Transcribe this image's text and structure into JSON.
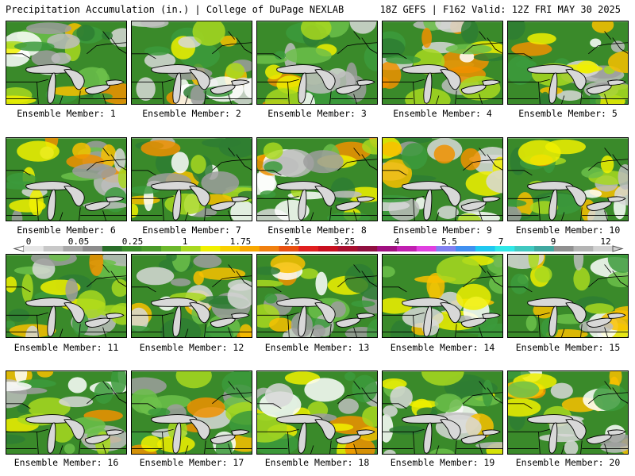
{
  "header": {
    "left": "Precipitation Accumulation (in.) | College of DuPage NEXLAB",
    "right": "18Z GEFS | F162 Valid: 12Z FRI MAY 30 2025"
  },
  "panels": [
    {
      "label": "Ensemble Member: 1"
    },
    {
      "label": "Ensemble Member: 2"
    },
    {
      "label": "Ensemble Member: 3"
    },
    {
      "label": "Ensemble Member: 4"
    },
    {
      "label": "Ensemble Member: 5"
    },
    {
      "label": "Ensemble Member: 6"
    },
    {
      "label": "Ensemble Member: 7"
    },
    {
      "label": "Ensemble Member: 8"
    },
    {
      "label": "Ensemble Member: 9"
    },
    {
      "label": "Ensemble Member: 10"
    },
    {
      "label": "Ensemble Member: 11"
    },
    {
      "label": "Ensemble Member: 12"
    },
    {
      "label": "Ensemble Member: 13"
    },
    {
      "label": "Ensemble Member: 14"
    },
    {
      "label": "Ensemble Member: 15"
    },
    {
      "label": "Ensemble Member: 16"
    },
    {
      "label": "Ensemble Member: 17"
    },
    {
      "label": "Ensemble Member: 18"
    },
    {
      "label": "Ensemble Member: 19"
    },
    {
      "label": "Ensemble Member: 20"
    }
  ],
  "colorbar": {
    "labels": [
      "0",
      "0.05",
      "0.25",
      "1",
      "1.75",
      "2.5",
      "3.25",
      "4",
      "5.5",
      "7",
      "9",
      "12"
    ],
    "colors": [
      "#e6e6e6",
      "#c8c8c8",
      "#a8a8a8",
      "#8c8c8c",
      "#2a6e2a",
      "#3a8a2a",
      "#4a9a2a",
      "#6cb82c",
      "#a8d820",
      "#f0f000",
      "#f8d000",
      "#f8a800",
      "#f08010",
      "#e85010",
      "#e02020",
      "#c81020",
      "#a81030",
      "#901040",
      "#a01080",
      "#c020b0",
      "#e040e0",
      "#8080f0",
      "#4090f0",
      "#20c8f0",
      "#30e8e8",
      "#40c8c0",
      "#40a8a0",
      "#909090",
      "#b4b4b4",
      "#d2d2d2"
    ]
  }
}
